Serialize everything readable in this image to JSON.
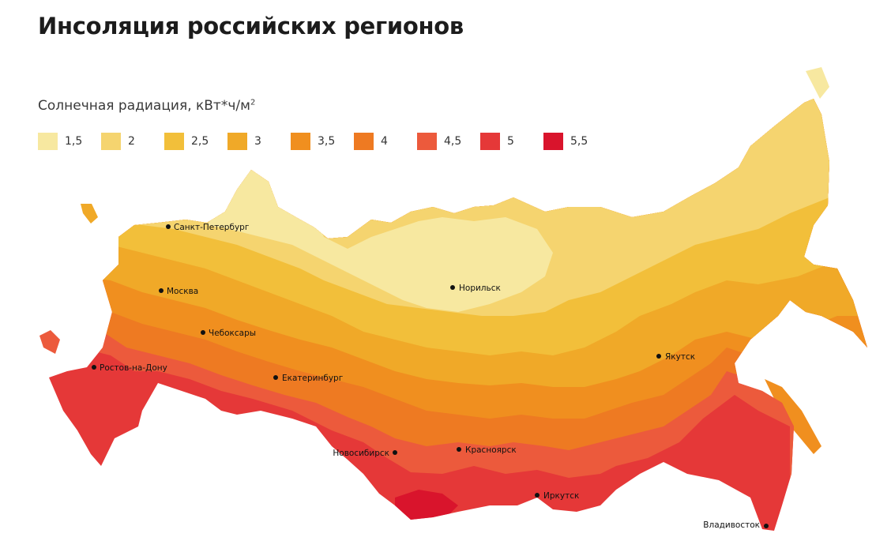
{
  "title": "Инсоляция российских регионов",
  "legend": {
    "title": "Солнечная радиация, кВт*ч/м",
    "title_sup": "2",
    "items": [
      {
        "label": "1,5",
        "color": "#f7e8a0"
      },
      {
        "label": "2",
        "color": "#f5d46f"
      },
      {
        "label": "2,5",
        "color": "#f2bf3a"
      },
      {
        "label": "3",
        "color": "#f0a928"
      },
      {
        "label": "3,5",
        "color": "#f08f1f"
      },
      {
        "label": "4",
        "color": "#ee7a22"
      },
      {
        "label": "4,5",
        "color": "#ec5a3c"
      },
      {
        "label": "5",
        "color": "#e53838"
      },
      {
        "label": "5,5",
        "color": "#d9142c"
      }
    ]
  },
  "cities": [
    {
      "name": "Санкт-Петербург"
    },
    {
      "name": "Москва"
    },
    {
      "name": "Чебоксары"
    },
    {
      "name": "Ростов-на-Дону"
    },
    {
      "name": "Екатеринбург"
    },
    {
      "name": "Норильск"
    },
    {
      "name": "Якутск"
    },
    {
      "name": "Новосибирск"
    },
    {
      "name": "Красноярск"
    },
    {
      "name": "Иркутск"
    },
    {
      "name": "Владивосток"
    }
  ]
}
